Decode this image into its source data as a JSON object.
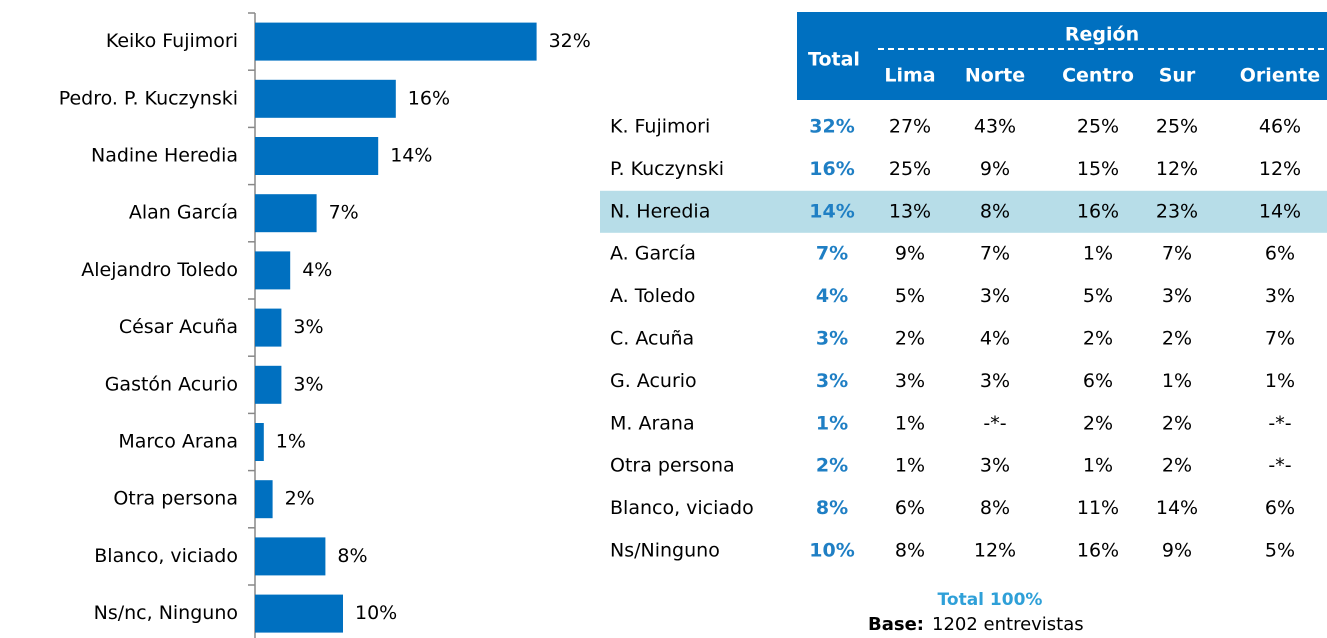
{
  "chart_data": {
    "type": "bar",
    "orientation": "horizontal",
    "color": "#0070c0",
    "categories": [
      "Keiko Fujimori",
      "Pedro. P. Kuczynski",
      "Nadine Heredia",
      "Alan García",
      "Alejandro Toledo",
      "César Acuña",
      "Gastón Acurio",
      "Marco Arana",
      "Otra persona",
      "Blanco, viciado",
      "Ns/nc, Ninguno"
    ],
    "values": [
      32,
      16,
      14,
      7,
      4,
      3,
      3,
      1,
      2,
      8,
      10
    ],
    "value_labels": [
      "32%",
      "16%",
      "14%",
      "7%",
      "4%",
      "3%",
      "3%",
      "1%",
      "2%",
      "8%",
      "10%"
    ]
  },
  "table": {
    "total_header": "Total",
    "group_header": "Región",
    "columns": [
      "Lima",
      "Norte",
      "Centro",
      "Sur",
      "Oriente"
    ],
    "highlight_row": 2,
    "rows": [
      [
        "K. Fujimori",
        "32%",
        "27%",
        "43%",
        "25%",
        "25%",
        "46%"
      ],
      [
        "P. Kuczynski",
        "16%",
        "25%",
        "9%",
        "15%",
        "12%",
        "12%"
      ],
      [
        "N. Heredia",
        "14%",
        "13%",
        "8%",
        "16%",
        "23%",
        "14%"
      ],
      [
        "A. García",
        "7%",
        "9%",
        "7%",
        "1%",
        "7%",
        "6%"
      ],
      [
        "A. Toledo",
        "4%",
        "5%",
        "3%",
        "5%",
        "3%",
        "3%"
      ],
      [
        "C. Acuña",
        "3%",
        "2%",
        "4%",
        "2%",
        "2%",
        "7%"
      ],
      [
        "G. Acurio",
        "3%",
        "3%",
        "3%",
        "6%",
        "1%",
        "1%"
      ],
      [
        "M. Arana",
        "1%",
        "1%",
        "-*-",
        "2%",
        "2%",
        "-*-"
      ],
      [
        "Otra persona",
        "2%",
        "1%",
        "3%",
        "1%",
        "2%",
        "-*-"
      ],
      [
        "Blanco, viciado",
        "8%",
        "6%",
        "8%",
        "11%",
        "14%",
        "6%"
      ],
      [
        "Ns/Ninguno",
        "10%",
        "8%",
        "12%",
        "16%",
        "9%",
        "5%"
      ]
    ],
    "footer_total": "Total 100%",
    "base_label": "Base:",
    "base_text": "1202 entrevistas"
  }
}
